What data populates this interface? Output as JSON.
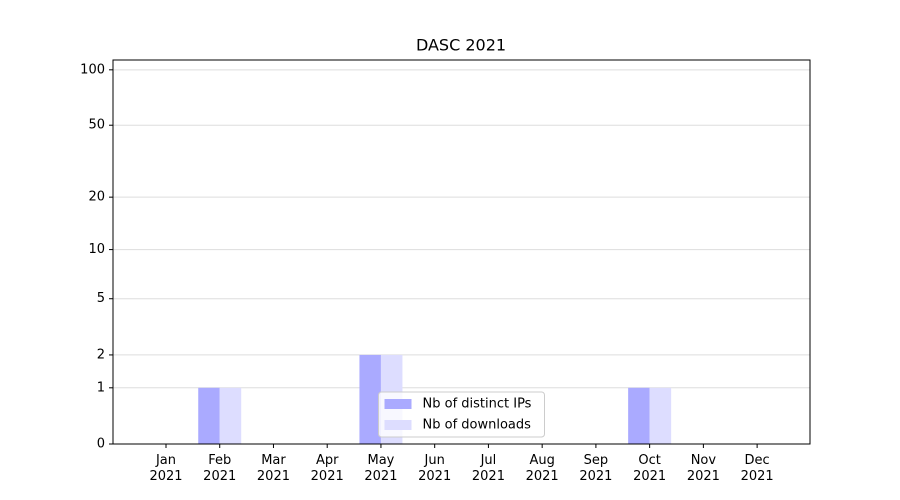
{
  "chart_data": {
    "type": "bar",
    "title": "DASC 2021",
    "categories": [
      "Jan\n2021",
      "Feb\n2021",
      "Mar\n2021",
      "Apr\n2021",
      "May\n2021",
      "Jun\n2021",
      "Jul\n2021",
      "Aug\n2021",
      "Sep\n2021",
      "Oct\n2021",
      "Nov\n2021",
      "Dec\n2021"
    ],
    "series": [
      {
        "name": "Nb of distinct IPs",
        "color": "#aaaaff",
        "values": [
          0,
          1,
          0,
          0,
          2,
          0,
          0,
          0,
          0,
          1,
          0,
          0
        ]
      },
      {
        "name": "Nb of downloads",
        "color": "#ddddff",
        "values": [
          0,
          1,
          0,
          0,
          2,
          0,
          0,
          0,
          0,
          1,
          0,
          0
        ]
      }
    ],
    "yscale": "log1p",
    "ylim": [
      0,
      113
    ],
    "yticks": [
      0,
      1,
      2,
      5,
      10,
      20,
      50,
      100
    ],
    "grid": true,
    "legend": "lower center"
  }
}
